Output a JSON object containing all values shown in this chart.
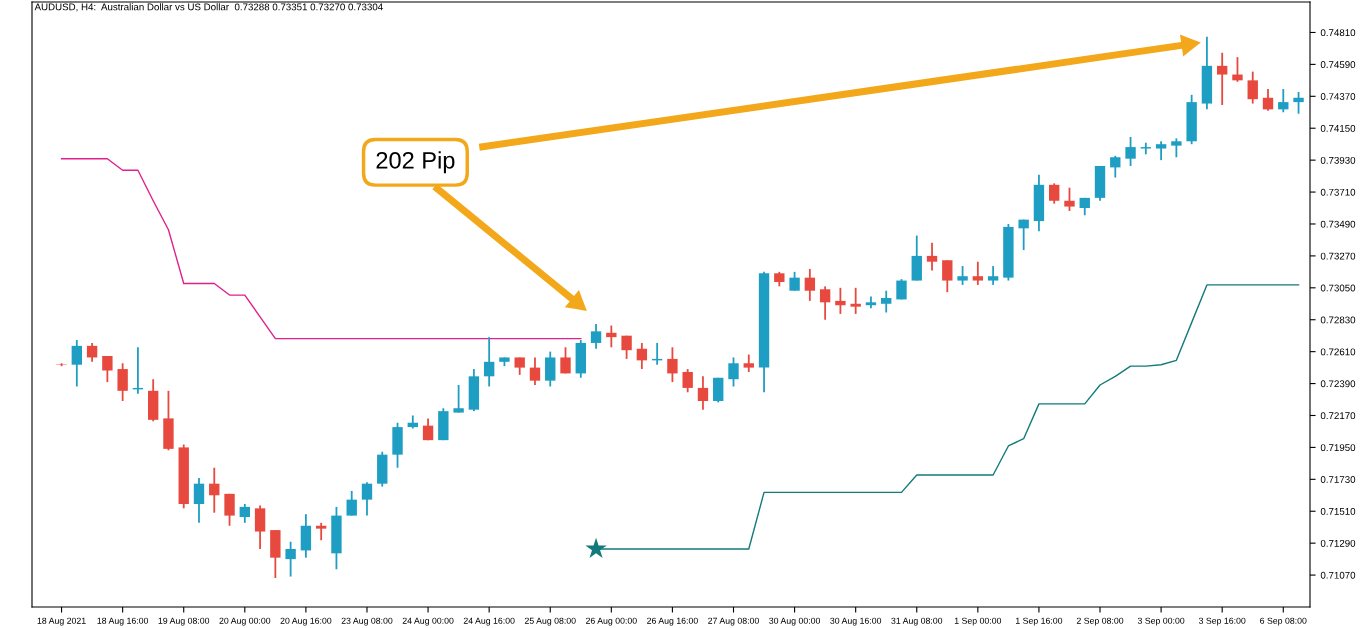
{
  "chart_data": {
    "type": "candlestick",
    "title": "AUDUSD, H4:  Australian Dollar vs US Dollar  0.73288 0.73351 0.73270 0.73304",
    "categories": [
      "18 Aug 2021",
      null,
      null,
      null,
      "18 Aug 16:00",
      null,
      null,
      null,
      "19 Aug 08:00",
      null,
      null,
      null,
      "20 Aug 00:00",
      null,
      null,
      null,
      "20 Aug 16:00",
      null,
      null,
      null,
      "23 Aug 08:00",
      null,
      null,
      null,
      "24 Aug 00:00",
      null,
      null,
      null,
      "24 Aug 16:00",
      null,
      null,
      null,
      "25 Aug 08:00",
      null,
      null,
      null,
      "26 Aug 00:00",
      null,
      null,
      null,
      "26 Aug 16:00",
      null,
      null,
      null,
      "27 Aug 08:00",
      null,
      null,
      null,
      "30 Aug 00:00",
      null,
      null,
      null,
      "30 Aug 16:00",
      null,
      null,
      null,
      "31 Aug 08:00",
      null,
      null,
      null,
      "1 Sep 00:00",
      null,
      null,
      null,
      "1 Sep 16:00",
      null,
      null,
      null,
      "2 Sep 08:00",
      null,
      null,
      null,
      "3 Sep 00:00",
      null,
      null,
      null,
      "3 Sep 16:00",
      null,
      null,
      null,
      "6 Sep 08:00",
      null
    ],
    "ohlc": [
      [
        0.7252,
        0.7253,
        0.7251,
        0.7252
      ],
      [
        0.7252,
        0.7269,
        0.7237,
        0.7265
      ],
      [
        0.7265,
        0.7267,
        0.7254,
        0.7257
      ],
      [
        0.7258,
        0.7258,
        0.724,
        0.7248
      ],
      [
        0.7249,
        0.7253,
        0.7227,
        0.7234
      ],
      [
        0.7235,
        0.7264,
        0.7232,
        0.7236
      ],
      [
        0.7234,
        0.7242,
        0.7213,
        0.7214
      ],
      [
        0.7215,
        0.7234,
        0.7193,
        0.7194
      ],
      [
        0.7195,
        0.7197,
        0.7153,
        0.7156
      ],
      [
        0.7156,
        0.7174,
        0.7143,
        0.717
      ],
      [
        0.717,
        0.7181,
        0.715,
        0.7162
      ],
      [
        0.7163,
        0.7163,
        0.7141,
        0.7148
      ],
      [
        0.7147,
        0.7156,
        0.7143,
        0.7154
      ],
      [
        0.7153,
        0.7155,
        0.7125,
        0.7137
      ],
      [
        0.7138,
        0.7138,
        0.7105,
        0.7119
      ],
      [
        0.7118,
        0.713,
        0.7106,
        0.7125
      ],
      [
        0.7124,
        0.7149,
        0.7119,
        0.7141
      ],
      [
        0.7141,
        0.7143,
        0.7131,
        0.7139
      ],
      [
        0.7122,
        0.7154,
        0.7111,
        0.7148
      ],
      [
        0.7148,
        0.7165,
        0.7148,
        0.7159
      ],
      [
        0.7159,
        0.7171,
        0.7148,
        0.717
      ],
      [
        0.717,
        0.7192,
        0.7168,
        0.719
      ],
      [
        0.719,
        0.7212,
        0.7181,
        0.7209
      ],
      [
        0.7209,
        0.7217,
        0.7208,
        0.7212
      ],
      [
        0.721,
        0.7215,
        0.72,
        0.72
      ],
      [
        0.72,
        0.7222,
        0.72,
        0.722
      ],
      [
        0.7219,
        0.7238,
        0.7219,
        0.7222
      ],
      [
        0.7221,
        0.7249,
        0.722,
        0.7244
      ],
      [
        0.7244,
        0.7271,
        0.7237,
        0.7254
      ],
      [
        0.7254,
        0.7257,
        0.7251,
        0.7257
      ],
      [
        0.7257,
        0.7257,
        0.7245,
        0.725
      ],
      [
        0.725,
        0.7257,
        0.7238,
        0.7241
      ],
      [
        0.7241,
        0.7261,
        0.7237,
        0.7257
      ],
      [
        0.7257,
        0.7264,
        0.7246,
        0.7246
      ],
      [
        0.7246,
        0.7269,
        0.7243,
        0.7267
      ],
      [
        0.7267,
        0.728,
        0.7263,
        0.7275
      ],
      [
        0.7274,
        0.7279,
        0.7264,
        0.7271
      ],
      [
        0.7272,
        0.7272,
        0.7256,
        0.7262
      ],
      [
        0.7263,
        0.7267,
        0.7249,
        0.7255
      ],
      [
        0.7255,
        0.7267,
        0.7252,
        0.7256
      ],
      [
        0.7256,
        0.7264,
        0.724,
        0.7246
      ],
      [
        0.7247,
        0.7249,
        0.7233,
        0.7236
      ],
      [
        0.7236,
        0.7244,
        0.7221,
        0.7227
      ],
      [
        0.7227,
        0.7243,
        0.7226,
        0.7243
      ],
      [
        0.7242,
        0.7257,
        0.7237,
        0.7253
      ],
      [
        0.7253,
        0.7259,
        0.7247,
        0.725
      ],
      [
        0.725,
        0.7316,
        0.7233,
        0.7315
      ],
      [
        0.7315,
        0.7316,
        0.7306,
        0.7309
      ],
      [
        0.7303,
        0.7316,
        0.7303,
        0.7312
      ],
      [
        0.7312,
        0.7318,
        0.7296,
        0.7303
      ],
      [
        0.7304,
        0.7306,
        0.7283,
        0.7295
      ],
      [
        0.7296,
        0.7305,
        0.7287,
        0.7293
      ],
      [
        0.7294,
        0.7305,
        0.7287,
        0.7292
      ],
      [
        0.7293,
        0.7299,
        0.7291,
        0.7295
      ],
      [
        0.7294,
        0.7303,
        0.7288,
        0.7298
      ],
      [
        0.7297,
        0.7311,
        0.7297,
        0.731
      ],
      [
        0.731,
        0.7341,
        0.731,
        0.7327
      ],
      [
        0.7327,
        0.7336,
        0.7317,
        0.7323
      ],
      [
        0.7324,
        0.7324,
        0.7302,
        0.731
      ],
      [
        0.731,
        0.732,
        0.7307,
        0.7313
      ],
      [
        0.7313,
        0.7323,
        0.7307,
        0.731
      ],
      [
        0.731,
        0.732,
        0.7307,
        0.7313
      ],
      [
        0.7312,
        0.7349,
        0.731,
        0.7347
      ],
      [
        0.7346,
        0.7352,
        0.7331,
        0.7352
      ],
      [
        0.7351,
        0.7383,
        0.7344,
        0.7376
      ],
      [
        0.7376,
        0.7377,
        0.7363,
        0.7365
      ],
      [
        0.7365,
        0.7374,
        0.7358,
        0.7361
      ],
      [
        0.736,
        0.7367,
        0.7355,
        0.7367
      ],
      [
        0.7367,
        0.7389,
        0.7365,
        0.7389
      ],
      [
        0.7388,
        0.7396,
        0.7381,
        0.7395
      ],
      [
        0.7394,
        0.7409,
        0.7389,
        0.7402
      ],
      [
        0.7401,
        0.7405,
        0.7397,
        0.7402
      ],
      [
        0.7401,
        0.7406,
        0.7393,
        0.7404
      ],
      [
        0.7403,
        0.7408,
        0.7395,
        0.7406
      ],
      [
        0.7406,
        0.7438,
        0.7404,
        0.7433
      ],
      [
        0.7432,
        0.7478,
        0.7428,
        0.7458
      ],
      [
        0.7458,
        0.7467,
        0.7431,
        0.7452
      ],
      [
        0.7452,
        0.7464,
        0.7447,
        0.7448
      ],
      [
        0.7448,
        0.7454,
        0.7432,
        0.7435
      ],
      [
        0.7436,
        0.7442,
        0.7427,
        0.7428
      ],
      [
        0.7428,
        0.7442,
        0.7426,
        0.7433
      ],
      [
        0.7433,
        0.744,
        0.7425,
        0.7436
      ]
    ],
    "colors": [
      "#e8493f",
      "#1f9ec4",
      "#e8493f",
      "#e8493f",
      "#e8493f",
      "#1f9ec4",
      "#e8493f",
      "#e8493f",
      "#e8493f",
      "#1f9ec4",
      "#e8493f",
      "#e8493f",
      "#1f9ec4",
      "#e8493f",
      "#e8493f",
      "#1f9ec4",
      "#1f9ec4",
      "#e8493f",
      "#1f9ec4",
      "#1f9ec4",
      "#1f9ec4",
      "#1f9ec4",
      "#1f9ec4",
      "#1f9ec4",
      "#e8493f",
      "#1f9ec4",
      "#1f9ec4",
      "#1f9ec4",
      "#1f9ec4",
      "#1f9ec4",
      "#e8493f",
      "#e8493f",
      "#1f9ec4",
      "#e8493f",
      "#1f9ec4",
      "#1f9ec4",
      "#e8493f",
      "#e8493f",
      "#e8493f",
      "#1f9ec4",
      "#e8493f",
      "#e8493f",
      "#e8493f",
      "#1f9ec4",
      "#1f9ec4",
      "#e8493f",
      "#1f9ec4",
      "#e8493f",
      "#1f9ec4",
      "#e8493f",
      "#e8493f",
      "#e8493f",
      "#e8493f",
      "#1f9ec4",
      "#1f9ec4",
      "#1f9ec4",
      "#1f9ec4",
      "#e8493f",
      "#e8493f",
      "#1f9ec4",
      "#e8493f",
      "#1f9ec4",
      "#1f9ec4",
      "#1f9ec4",
      "#1f9ec4",
      "#e8493f",
      "#e8493f",
      "#1f9ec4",
      "#1f9ec4",
      "#1f9ec4",
      "#1f9ec4",
      "#1f9ec4",
      "#1f9ec4",
      "#1f9ec4",
      "#1f9ec4",
      "#1f9ec4",
      "#e8493f",
      "#e8493f",
      "#e8493f",
      "#e8493f",
      "#1f9ec4",
      "#1f9ec4"
    ],
    "series": [
      {
        "type": "line",
        "color": "#e0208c",
        "values": [
          0.7394,
          0.7394,
          0.7394,
          0.7394,
          0.7386,
          0.7386,
          0.7365,
          0.7345,
          0.7308,
          0.7308,
          0.7308,
          0.73,
          0.73,
          0.7285,
          0.727,
          0.727,
          0.727,
          0.727,
          0.727,
          0.727,
          0.727,
          0.727,
          0.727,
          0.727,
          0.727,
          0.727,
          0.727,
          0.727,
          0.727,
          0.727,
          0.727,
          0.727,
          0.727,
          0.727,
          0.727,
          null,
          null,
          null,
          null,
          null,
          null,
          null,
          null,
          null,
          null,
          null,
          null,
          null,
          null,
          null,
          null,
          null,
          null,
          null,
          null,
          null,
          null,
          null,
          null,
          null,
          null,
          null,
          null,
          null,
          null,
          null,
          null,
          null,
          null,
          null,
          null,
          null,
          null,
          null,
          null,
          null,
          null,
          null,
          null,
          null,
          null,
          null
        ]
      },
      {
        "type": "line",
        "color": "#127a7a",
        "values": [
          null,
          null,
          null,
          null,
          null,
          null,
          null,
          null,
          null,
          null,
          null,
          null,
          null,
          null,
          null,
          null,
          null,
          null,
          null,
          null,
          null,
          null,
          null,
          null,
          null,
          null,
          null,
          null,
          null,
          null,
          null,
          null,
          null,
          null,
          null,
          0.7125,
          0.7125,
          0.7125,
          0.7125,
          0.7125,
          0.7125,
          0.7125,
          0.7125,
          0.7125,
          0.7125,
          0.7125,
          0.7164,
          0.7164,
          0.7164,
          0.7164,
          0.7164,
          0.7164,
          0.7164,
          0.7164,
          0.7164,
          0.7164,
          0.7176,
          0.7176,
          0.7176,
          0.7176,
          0.7176,
          0.7176,
          0.7196,
          0.7201,
          0.7225,
          0.7225,
          0.7225,
          0.7225,
          0.7238,
          0.7244,
          0.7251,
          0.7251,
          0.7252,
          0.7255,
          0.7281,
          0.7307,
          0.7307,
          0.7307,
          0.7307,
          0.7307,
          0.7307,
          0.7307
        ]
      },
      {
        "type": "scatter",
        "color": "#127a7a",
        "marker": "star",
        "values": [
          null,
          null,
          null,
          null,
          null,
          null,
          null,
          null,
          null,
          null,
          null,
          null,
          null,
          null,
          null,
          null,
          null,
          null,
          null,
          null,
          null,
          null,
          null,
          null,
          null,
          null,
          null,
          null,
          null,
          null,
          null,
          null,
          null,
          null,
          null,
          0.7125,
          null,
          null,
          null,
          null,
          null,
          null,
          null,
          null,
          null,
          null,
          null,
          null,
          null,
          null,
          null,
          null,
          null,
          null,
          null,
          null,
          null,
          null,
          null,
          null,
          null,
          null,
          null,
          null,
          null,
          null,
          null,
          null,
          null,
          null,
          null,
          null,
          null,
          null,
          null,
          null,
          null,
          null,
          null,
          null,
          null,
          null
        ]
      }
    ],
    "ylim": [
      0.7085,
      0.7502
    ],
    "yticks": [
      {
        "value": 0.7481,
        "label": "0.74810"
      },
      {
        "value": 0.7459,
        "label": "0.74590"
      },
      {
        "value": 0.7437,
        "label": "0.74370"
      },
      {
        "value": 0.7415,
        "label": "0.74150"
      },
      {
        "value": 0.7393,
        "label": "0.73930"
      },
      {
        "value": 0.7371,
        "label": "0.73710"
      },
      {
        "value": 0.7349,
        "label": "0.73490"
      },
      {
        "value": 0.7327,
        "label": "0.73270"
      },
      {
        "value": 0.7305,
        "label": "0.73050"
      },
      {
        "value": 0.7283,
        "label": "0.72830"
      },
      {
        "value": 0.7261,
        "label": "0.72610"
      },
      {
        "value": 0.7239,
        "label": "0.72390"
      },
      {
        "value": 0.7217,
        "label": "0.72170"
      },
      {
        "value": 0.7195,
        "label": "0.71950"
      },
      {
        "value": 0.7173,
        "label": "0.71730"
      },
      {
        "value": 0.7151,
        "label": "0.71510"
      },
      {
        "value": 0.7129,
        "label": "0.71290"
      },
      {
        "value": 0.7107,
        "label": "0.71070"
      }
    ],
    "annotations": [
      "202 Pip"
    ]
  }
}
